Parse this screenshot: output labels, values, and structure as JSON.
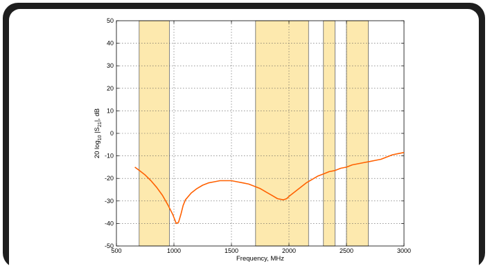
{
  "chart_data": {
    "type": "line",
    "xlabel": "Frequency, MHz",
    "ylabel": {
      "prefix": "20 log",
      "sub1": "10",
      "mid": " |S",
      "sub2": "21",
      "suffix": "|, dB"
    },
    "xlim": [
      500,
      3000
    ],
    "ylim": [
      -50,
      50
    ],
    "xticks": [
      500,
      1000,
      1500,
      2000,
      2500,
      3000
    ],
    "yticks": [
      -50,
      -40,
      -30,
      -20,
      -10,
      0,
      10,
      20,
      30,
      40,
      50
    ],
    "grid": true,
    "line_color": "#ff6000",
    "band_color": "#fde9ae",
    "highlight_bands": [
      [
        698,
        960
      ],
      [
        1710,
        2170
      ],
      [
        2300,
        2400
      ],
      [
        2500,
        2690
      ]
    ],
    "series": [
      {
        "x": [
          660,
          700,
          750,
          800,
          850,
          900,
          950,
          990,
          1020,
          1040,
          1060,
          1080,
          1100,
          1150,
          1200,
          1250,
          1300,
          1350,
          1400,
          1450,
          1500,
          1550,
          1600,
          1650,
          1700,
          1750,
          1800,
          1850,
          1900,
          1950,
          1980,
          2000,
          2050,
          2100,
          2150,
          2200,
          2250,
          2300,
          2350,
          2400,
          2450,
          2500,
          2550,
          2600,
          2650,
          2700,
          2750,
          2800,
          2850,
          2900,
          2950,
          3000
        ],
        "y": [
          -15,
          -16.5,
          -18.5,
          -21,
          -24,
          -27.5,
          -32,
          -36,
          -40,
          -39.5,
          -36,
          -32,
          -29.5,
          -26.5,
          -24.5,
          -23,
          -22,
          -21.5,
          -21,
          -21,
          -21,
          -21.5,
          -22,
          -22.5,
          -23.5,
          -24.5,
          -26,
          -27.5,
          -29,
          -29.5,
          -29,
          -28,
          -26,
          -24,
          -22,
          -20.5,
          -19,
          -18,
          -17,
          -16.5,
          -15.5,
          -15,
          -14,
          -13.5,
          -13,
          -12.5,
          -12,
          -11.5,
          -10.5,
          -9.5,
          -9,
          -8.5
        ]
      }
    ]
  }
}
